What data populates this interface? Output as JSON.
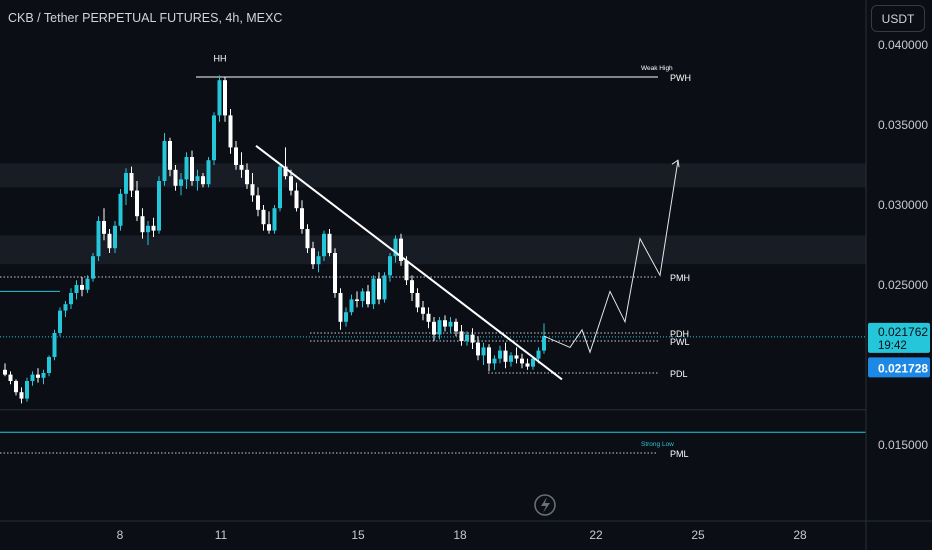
{
  "header": {
    "title": "CKB / Tether PERPETUAL FUTURES, 4h, MEXC",
    "currency_button": "USDT"
  },
  "colors": {
    "background": "#0b0e14",
    "up": "#26c6da",
    "down": "#ffffff",
    "accent": "#26c6da",
    "price_tag_current": "#26c6da",
    "price_tag_marker": "#1e88e5"
  },
  "chart_data": {
    "type": "candlestick",
    "symbol": "CKB / Tether PERPETUAL FUTURES",
    "timeframe": "4h",
    "exchange": "MEXC",
    "y_axis": {
      "ticks": [
        "0.040000",
        "0.035000",
        "0.030000",
        "0.025000",
        "0.015000"
      ],
      "range": [
        0.0113,
        0.0414
      ]
    },
    "x_axis": {
      "ticks": [
        "8",
        "11",
        "15",
        "18",
        "22",
        "25",
        "28"
      ]
    },
    "price_labels": {
      "current": "0.021762",
      "countdown": "19:42",
      "marker": "0.021728"
    },
    "levels": [
      {
        "label": "PWH",
        "note": "Weak High",
        "price": 0.038
      },
      {
        "label": "PMH",
        "price": 0.0255
      },
      {
        "label": "PDH",
        "price": 0.022
      },
      {
        "label": "PWL",
        "price": 0.0215
      },
      {
        "label": "PDL",
        "price": 0.0195
      },
      {
        "label": "PML",
        "note": "Strong Low",
        "price": 0.0145
      }
    ],
    "annotations": [
      {
        "text": "HH",
        "near_price": 0.0381
      }
    ],
    "zones": [
      {
        "from": 0.0311,
        "to": 0.0326
      },
      {
        "from": 0.0263,
        "to": 0.0281
      }
    ],
    "candles_ohlc": [
      [
        0.0197,
        0.0201,
        0.0193,
        0.0194
      ],
      [
        0.0194,
        0.0196,
        0.0188,
        0.019
      ],
      [
        0.019,
        0.0191,
        0.0181,
        0.0183
      ],
      [
        0.0183,
        0.0186,
        0.0176,
        0.0179
      ],
      [
        0.0179,
        0.0192,
        0.0177,
        0.019
      ],
      [
        0.019,
        0.0196,
        0.0187,
        0.0194
      ],
      [
        0.0194,
        0.0198,
        0.0189,
        0.0192
      ],
      [
        0.0192,
        0.0197,
        0.0188,
        0.0195
      ],
      [
        0.0195,
        0.0206,
        0.0193,
        0.0205
      ],
      [
        0.0205,
        0.0222,
        0.0203,
        0.022
      ],
      [
        0.022,
        0.0236,
        0.0218,
        0.0234
      ],
      [
        0.0234,
        0.024,
        0.023,
        0.0238
      ],
      [
        0.0238,
        0.0248,
        0.0235,
        0.0245
      ],
      [
        0.0245,
        0.0253,
        0.0241,
        0.025
      ],
      [
        0.025,
        0.0255,
        0.0243,
        0.0247
      ],
      [
        0.0247,
        0.0256,
        0.0245,
        0.0254
      ],
      [
        0.0254,
        0.027,
        0.0252,
        0.0268
      ],
      [
        0.0268,
        0.0293,
        0.0265,
        0.029
      ],
      [
        0.029,
        0.0298,
        0.0278,
        0.0282
      ],
      [
        0.0282,
        0.0285,
        0.027,
        0.0273
      ],
      [
        0.0273,
        0.029,
        0.027,
        0.0287
      ],
      [
        0.0287,
        0.031,
        0.0284,
        0.0307
      ],
      [
        0.0307,
        0.0323,
        0.03,
        0.032
      ],
      [
        0.032,
        0.0324,
        0.0305,
        0.0309
      ],
      [
        0.0309,
        0.0315,
        0.029,
        0.0293
      ],
      [
        0.0293,
        0.0298,
        0.0279,
        0.0283
      ],
      [
        0.0283,
        0.029,
        0.0275,
        0.0287
      ],
      [
        0.0287,
        0.0292,
        0.028,
        0.0284
      ],
      [
        0.0284,
        0.0318,
        0.0282,
        0.0315
      ],
      [
        0.0315,
        0.0345,
        0.0312,
        0.034
      ],
      [
        0.034,
        0.0342,
        0.0318,
        0.0322
      ],
      [
        0.0322,
        0.0325,
        0.0309,
        0.0312
      ],
      [
        0.0312,
        0.032,
        0.0306,
        0.0316
      ],
      [
        0.0316,
        0.0333,
        0.031,
        0.033
      ],
      [
        0.033,
        0.0334,
        0.0312,
        0.0315
      ],
      [
        0.0315,
        0.0322,
        0.0309,
        0.0318
      ],
      [
        0.0318,
        0.032,
        0.0311,
        0.0313
      ],
      [
        0.0313,
        0.033,
        0.0311,
        0.0328
      ],
      [
        0.0328,
        0.0358,
        0.0325,
        0.0356
      ],
      [
        0.0356,
        0.0381,
        0.0352,
        0.0378
      ],
      [
        0.0378,
        0.038,
        0.0352,
        0.0356
      ],
      [
        0.0356,
        0.036,
        0.0332,
        0.0336
      ],
      [
        0.0336,
        0.034,
        0.0322,
        0.0325
      ],
      [
        0.0325,
        0.0333,
        0.0317,
        0.0322
      ],
      [
        0.0322,
        0.0326,
        0.031,
        0.0313
      ],
      [
        0.0313,
        0.032,
        0.0302,
        0.0306
      ],
      [
        0.0306,
        0.0311,
        0.0293,
        0.0297
      ],
      [
        0.0297,
        0.03,
        0.0284,
        0.0288
      ],
      [
        0.0288,
        0.0296,
        0.0282,
        0.0284
      ],
      [
        0.0284,
        0.03,
        0.0282,
        0.0298
      ],
      [
        0.0298,
        0.0326,
        0.0296,
        0.0324
      ],
      [
        0.0324,
        0.0336,
        0.0316,
        0.0318
      ],
      [
        0.0318,
        0.0322,
        0.0306,
        0.0309
      ],
      [
        0.0309,
        0.0314,
        0.0296,
        0.0298
      ],
      [
        0.0298,
        0.0303,
        0.0282,
        0.0285
      ],
      [
        0.0285,
        0.0288,
        0.027,
        0.0273
      ],
      [
        0.0273,
        0.0277,
        0.026,
        0.0263
      ],
      [
        0.0263,
        0.0271,
        0.0258,
        0.0268
      ],
      [
        0.0268,
        0.0284,
        0.0265,
        0.0282
      ],
      [
        0.0282,
        0.0285,
        0.0268,
        0.027
      ],
      [
        0.027,
        0.0273,
        0.0242,
        0.0245
      ],
      [
        0.0245,
        0.0248,
        0.0222,
        0.0227
      ],
      [
        0.0227,
        0.0236,
        0.0224,
        0.0233
      ],
      [
        0.0233,
        0.0244,
        0.0231,
        0.0241
      ],
      [
        0.0241,
        0.0246,
        0.0236,
        0.024
      ],
      [
        0.024,
        0.0248,
        0.0236,
        0.0246
      ],
      [
        0.0246,
        0.025,
        0.0236,
        0.0238
      ],
      [
        0.0238,
        0.0256,
        0.0235,
        0.0254
      ],
      [
        0.0254,
        0.0258,
        0.0238,
        0.0241
      ],
      [
        0.0241,
        0.0258,
        0.0239,
        0.0256
      ],
      [
        0.0256,
        0.027,
        0.0252,
        0.0268
      ],
      [
        0.0268,
        0.0281,
        0.0264,
        0.0279
      ],
      [
        0.0279,
        0.0282,
        0.0262,
        0.0265
      ],
      [
        0.0265,
        0.0268,
        0.025,
        0.0253
      ],
      [
        0.0253,
        0.0256,
        0.024,
        0.0245
      ],
      [
        0.0245,
        0.0248,
        0.0233,
        0.0236
      ],
      [
        0.0236,
        0.024,
        0.0228,
        0.0232
      ],
      [
        0.0232,
        0.0236,
        0.0223,
        0.0227
      ],
      [
        0.0227,
        0.023,
        0.0215,
        0.0219
      ],
      [
        0.0219,
        0.023,
        0.0216,
        0.0228
      ],
      [
        0.0228,
        0.0231,
        0.0221,
        0.0224
      ],
      [
        0.0224,
        0.023,
        0.022,
        0.0227
      ],
      [
        0.0227,
        0.0229,
        0.0218,
        0.0221
      ],
      [
        0.0221,
        0.0225,
        0.0212,
        0.0215
      ],
      [
        0.0215,
        0.0221,
        0.0212,
        0.0219
      ],
      [
        0.0219,
        0.0223,
        0.021,
        0.0214
      ],
      [
        0.0214,
        0.0218,
        0.0203,
        0.0206
      ],
      [
        0.0206,
        0.0214,
        0.02,
        0.0211
      ],
      [
        0.0211,
        0.0213,
        0.0196,
        0.0201
      ],
      [
        0.0201,
        0.0206,
        0.0197,
        0.0204
      ],
      [
        0.0204,
        0.0212,
        0.0201,
        0.0209
      ],
      [
        0.0209,
        0.0214,
        0.0198,
        0.0202
      ],
      [
        0.0202,
        0.0208,
        0.0199,
        0.0206
      ],
      [
        0.0206,
        0.0211,
        0.0201,
        0.0204
      ],
      [
        0.0204,
        0.0207,
        0.0198,
        0.0201
      ],
      [
        0.0201,
        0.0204,
        0.0197,
        0.0199
      ],
      [
        0.0199,
        0.0205,
        0.0197,
        0.0204
      ],
      [
        0.0204,
        0.0211,
        0.0201,
        0.0209
      ],
      [
        0.0209,
        0.0226,
        0.0207,
        0.0218
      ]
    ],
    "projection_path": [
      [
        0.0218,
        0.0226
      ],
      [
        0.0211,
        0.0222
      ],
      [
        0.0208,
        0.0246
      ],
      [
        0.0227,
        0.0279
      ],
      [
        0.0256,
        0.0328
      ]
    ]
  }
}
